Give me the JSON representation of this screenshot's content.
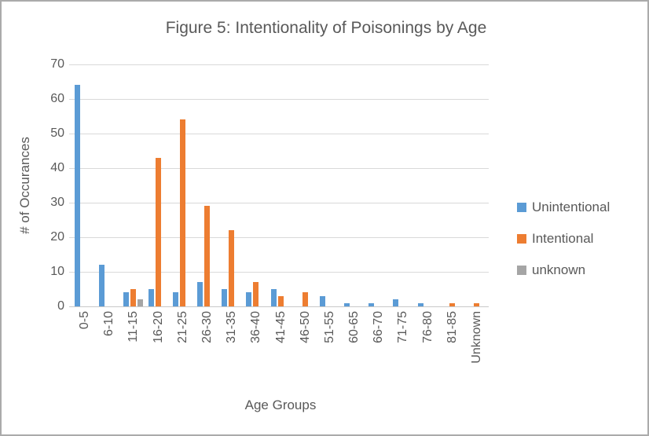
{
  "figure": {
    "title": "Figure 5: Intentionality of Poisonings by Age",
    "x_axis_title": "Age Groups",
    "y_axis_title": "# of Occurances"
  },
  "chart_data": {
    "type": "bar",
    "title": "Figure 5: Intentionality of Poisonings by Age",
    "xlabel": "Age Groups",
    "ylabel": "# of Occurances",
    "categories": [
      "0-5",
      "6-10",
      "11-15",
      "16-20",
      "21-25",
      "26-30",
      "31-35",
      "36-40",
      "41-45",
      "46-50",
      "51-55",
      "60-65",
      "66-70",
      "71-75",
      "76-80",
      "81-85",
      "Unknown"
    ],
    "series": [
      {
        "name": "Unintentional",
        "color": "#5B9BD5",
        "values": [
          64,
          12,
          4,
          5,
          4,
          7,
          5,
          4,
          5,
          0,
          3,
          1,
          1,
          2,
          1,
          0,
          0
        ]
      },
      {
        "name": "Intentional",
        "color": "#ED7D31",
        "values": [
          0,
          0,
          5,
          43,
          54,
          29,
          22,
          7,
          3,
          4,
          0,
          0,
          0,
          0,
          0,
          1,
          1
        ]
      },
      {
        "name": "unknown",
        "color": "#A5A5A5",
        "values": [
          0,
          0,
          2,
          0,
          0,
          0,
          0,
          0,
          0,
          0,
          0,
          0,
          0,
          0,
          0,
          0,
          0
        ]
      }
    ],
    "ylim": [
      0,
      70
    ],
    "yticks": [
      0,
      10,
      20,
      30,
      40,
      50,
      60,
      70
    ],
    "grid": true,
    "legend_position": "right"
  },
  "colors": {
    "text": "#595959",
    "gridline": "#D9D9D9",
    "frame_border": "#ABABAB",
    "background": "#FFFFFF"
  }
}
